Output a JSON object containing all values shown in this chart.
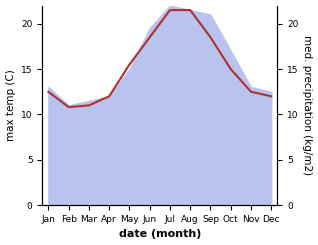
{
  "months": [
    "Jan",
    "Feb",
    "Mar",
    "Apr",
    "May",
    "Jun",
    "Jul",
    "Aug",
    "Sep",
    "Oct",
    "Nov",
    "Dec"
  ],
  "month_indices": [
    0,
    1,
    2,
    3,
    4,
    5,
    6,
    7,
    8,
    9,
    10,
    11
  ],
  "precipitation": [
    13.0,
    11.0,
    11.5,
    12.0,
    15.0,
    19.5,
    22.0,
    21.5,
    21.0,
    17.0,
    13.0,
    12.5
  ],
  "temperature": [
    12.5,
    10.8,
    11.0,
    12.0,
    15.5,
    18.5,
    21.5,
    21.5,
    18.5,
    15.0,
    12.5,
    12.0
  ],
  "precip_color": "#b8c4ee",
  "temp_line_color": "#b03030",
  "ylim_left": [
    0,
    22
  ],
  "ylim_right": [
    0,
    22
  ],
  "ylabel_left": "max temp (C)",
  "ylabel_right": "med. precipitation (kg/m2)",
  "xlabel": "date (month)",
  "xlabel_fontsize": 8,
  "ylabel_fontsize": 7.5,
  "tick_fontsize": 6.5,
  "yticks_left": [
    0,
    5,
    10,
    15,
    20
  ],
  "yticks_right": [
    0,
    5,
    10,
    15,
    20
  ],
  "background_color": "#ffffff"
}
